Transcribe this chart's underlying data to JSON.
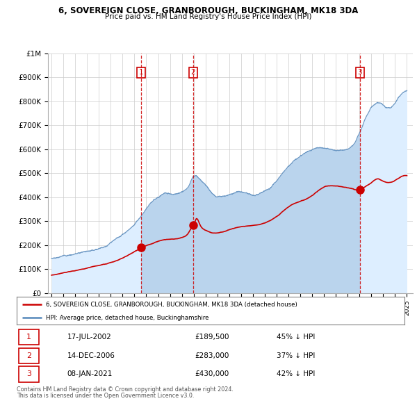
{
  "title": "6, SOVEREIGN CLOSE, GRANBOROUGH, BUCKINGHAM, MK18 3DA",
  "subtitle": "Price paid vs. HM Land Registry's House Price Index (HPI)",
  "legend_house": "6, SOVEREIGN CLOSE, GRANBOROUGH, BUCKINGHAM, MK18 3DA (detached house)",
  "legend_hpi": "HPI: Average price, detached house, Buckinghamshire",
  "footer1": "Contains HM Land Registry data © Crown copyright and database right 2024.",
  "footer2": "This data is licensed under the Open Government Licence v3.0.",
  "transactions": [
    {
      "num": 1,
      "date": "17-JUL-2002",
      "price": 189500,
      "pct": "45% ↓ HPI"
    },
    {
      "num": 2,
      "date": "14-DEC-2006",
      "price": 283000,
      "pct": "37% ↓ HPI"
    },
    {
      "num": 3,
      "date": "08-JAN-2021",
      "price": 430000,
      "pct": "42% ↓ HPI"
    }
  ],
  "transaction_dates_decimal": [
    2002.54,
    2006.96,
    2021.03
  ],
  "transaction_prices": [
    189500,
    283000,
    430000
  ],
  "house_color": "#cc0000",
  "hpi_color": "#5588bb",
  "hpi_fill_color": "#ddeeff",
  "vline_color": "#cc0000",
  "grid_color": "#cccccc",
  "ylim": [
    0,
    1000000
  ],
  "yticks": [
    0,
    100000,
    200000,
    300000,
    400000,
    500000,
    600000,
    700000,
    800000,
    900000,
    1000000
  ],
  "xstart": 1994.7,
  "xend": 2025.5,
  "hpi_keypoints": [
    [
      1995.0,
      145000
    ],
    [
      1996.0,
      155000
    ],
    [
      1997.0,
      165000
    ],
    [
      1998.0,
      178000
    ],
    [
      1999.0,
      195000
    ],
    [
      2000.0,
      220000
    ],
    [
      2001.0,
      255000
    ],
    [
      2002.0,
      300000
    ],
    [
      2002.5,
      330000
    ],
    [
      2003.0,
      360000
    ],
    [
      2003.5,
      385000
    ],
    [
      2004.0,
      405000
    ],
    [
      2004.5,
      420000
    ],
    [
      2005.0,
      420000
    ],
    [
      2005.5,
      415000
    ],
    [
      2006.0,
      425000
    ],
    [
      2006.5,
      445000
    ],
    [
      2007.0,
      490000
    ],
    [
      2007.5,
      475000
    ],
    [
      2008.0,
      455000
    ],
    [
      2008.5,
      420000
    ],
    [
      2009.0,
      405000
    ],
    [
      2009.5,
      410000
    ],
    [
      2010.0,
      420000
    ],
    [
      2010.5,
      430000
    ],
    [
      2011.0,
      435000
    ],
    [
      2011.5,
      430000
    ],
    [
      2012.0,
      425000
    ],
    [
      2012.5,
      430000
    ],
    [
      2013.0,
      440000
    ],
    [
      2013.5,
      455000
    ],
    [
      2014.0,
      480000
    ],
    [
      2014.5,
      510000
    ],
    [
      2015.0,
      535000
    ],
    [
      2015.5,
      555000
    ],
    [
      2016.0,
      570000
    ],
    [
      2016.5,
      580000
    ],
    [
      2017.0,
      590000
    ],
    [
      2017.5,
      600000
    ],
    [
      2018.0,
      600000
    ],
    [
      2018.5,
      595000
    ],
    [
      2019.0,
      590000
    ],
    [
      2019.5,
      595000
    ],
    [
      2020.0,
      600000
    ],
    [
      2020.5,
      620000
    ],
    [
      2021.0,
      670000
    ],
    [
      2021.5,
      730000
    ],
    [
      2022.0,
      780000
    ],
    [
      2022.5,
      800000
    ],
    [
      2023.0,
      790000
    ],
    [
      2023.5,
      780000
    ],
    [
      2024.0,
      800000
    ],
    [
      2024.5,
      830000
    ],
    [
      2025.0,
      845000
    ]
  ],
  "red_keypoints": [
    [
      1995.0,
      75000
    ],
    [
      1996.0,
      85000
    ],
    [
      1997.0,
      95000
    ],
    [
      1998.0,
      105000
    ],
    [
      1999.0,
      115000
    ],
    [
      2000.0,
      130000
    ],
    [
      2001.0,
      150000
    ],
    [
      2002.0,
      175000
    ],
    [
      2002.54,
      189500
    ],
    [
      2003.0,
      200000
    ],
    [
      2003.5,
      210000
    ],
    [
      2004.0,
      220000
    ],
    [
      2004.5,
      225000
    ],
    [
      2005.0,
      228000
    ],
    [
      2005.5,
      230000
    ],
    [
      2006.0,
      235000
    ],
    [
      2006.5,
      250000
    ],
    [
      2006.96,
      283000
    ],
    [
      2007.0,
      285000
    ],
    [
      2007.2,
      310000
    ],
    [
      2007.5,
      290000
    ],
    [
      2008.0,
      265000
    ],
    [
      2008.5,
      255000
    ],
    [
      2009.0,
      255000
    ],
    [
      2009.5,
      260000
    ],
    [
      2010.0,
      268000
    ],
    [
      2010.5,
      275000
    ],
    [
      2011.0,
      280000
    ],
    [
      2011.5,
      282000
    ],
    [
      2012.0,
      285000
    ],
    [
      2012.5,
      288000
    ],
    [
      2013.0,
      295000
    ],
    [
      2013.5,
      305000
    ],
    [
      2014.0,
      320000
    ],
    [
      2014.5,
      340000
    ],
    [
      2015.0,
      360000
    ],
    [
      2015.5,
      375000
    ],
    [
      2016.0,
      385000
    ],
    [
      2016.5,
      395000
    ],
    [
      2017.0,
      410000
    ],
    [
      2017.5,
      430000
    ],
    [
      2018.0,
      445000
    ],
    [
      2018.5,
      450000
    ],
    [
      2019.0,
      448000
    ],
    [
      2019.5,
      445000
    ],
    [
      2020.0,
      440000
    ],
    [
      2020.5,
      435000
    ],
    [
      2021.03,
      430000
    ],
    [
      2021.5,
      445000
    ],
    [
      2022.0,
      460000
    ],
    [
      2022.5,
      475000
    ],
    [
      2023.0,
      465000
    ],
    [
      2023.5,
      460000
    ],
    [
      2024.0,
      470000
    ],
    [
      2024.5,
      485000
    ],
    [
      2025.0,
      490000
    ]
  ]
}
